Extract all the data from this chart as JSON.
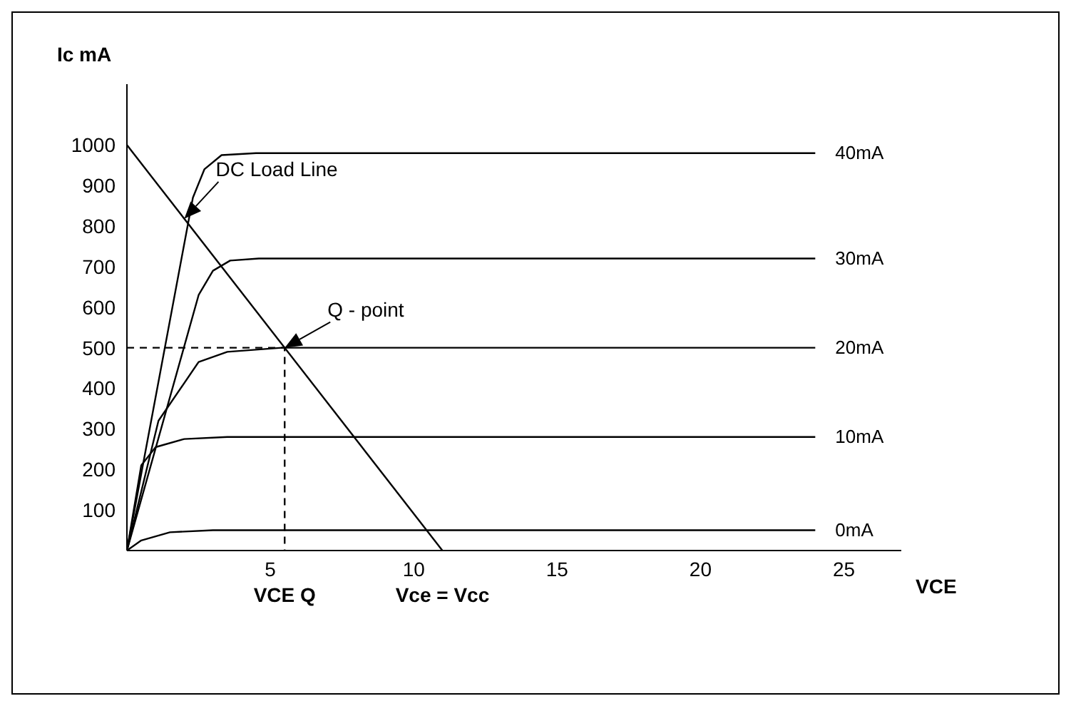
{
  "chart_data": {
    "type": "line",
    "xlabel": "VCE",
    "ylabel": "Ic mA",
    "xlim": [
      0,
      27
    ],
    "xticks": [
      5,
      10,
      15,
      20,
      25
    ],
    "ylim": [
      0,
      1150
    ],
    "yticks": [
      100,
      200,
      300,
      400,
      500,
      600,
      700,
      800,
      900,
      1000
    ],
    "grid": false,
    "legend": false,
    "marker": "none",
    "line_style": "solid",
    "series": [
      {
        "name": "40mA",
        "color": "#000000",
        "x": [
          0,
          2.3,
          2.7,
          3.3,
          4.5,
          24
        ],
        "values": [
          0,
          870,
          940,
          975,
          980,
          980
        ]
      },
      {
        "name": "30mA",
        "color": "#000000",
        "x": [
          0,
          2.5,
          3.0,
          3.6,
          4.6,
          24
        ],
        "values": [
          0,
          630,
          690,
          715,
          720,
          720
        ]
      },
      {
        "name": "20mA",
        "color": "#000000",
        "x": [
          0,
          1.1,
          2.5,
          3.5,
          5.4,
          24
        ],
        "values": [
          0,
          320,
          465,
          490,
          500,
          500
        ]
      },
      {
        "name": "10mA",
        "color": "#000000",
        "x": [
          0,
          0.5,
          1.0,
          2.0,
          3.5,
          24
        ],
        "values": [
          0,
          210,
          255,
          275,
          280,
          280
        ]
      },
      {
        "name": "0mA",
        "color": "#000000",
        "x": [
          0,
          0.5,
          1.5,
          3,
          24
        ],
        "values": [
          0,
          25,
          45,
          50,
          50
        ]
      },
      {
        "color": "#000000",
        "x": [
          0,
          11
        ],
        "values": [
          1000,
          0
        ]
      },
      {
        "color": "#000000",
        "line_style": "dashed",
        "x": [
          0,
          5.5,
          5.5
        ],
        "values": [
          500,
          500,
          0
        ]
      }
    ],
    "annotations": [
      {
        "text": "DC Load Line",
        "x": 2,
        "y": 818
      },
      {
        "text": "Q - point",
        "x": 5.5,
        "y": 500
      },
      {
        "text": "VCE Q",
        "x": 5.5,
        "y": 0
      },
      {
        "text": "Vce = Vcc",
        "x": 11,
        "y": 0
      }
    ]
  }
}
